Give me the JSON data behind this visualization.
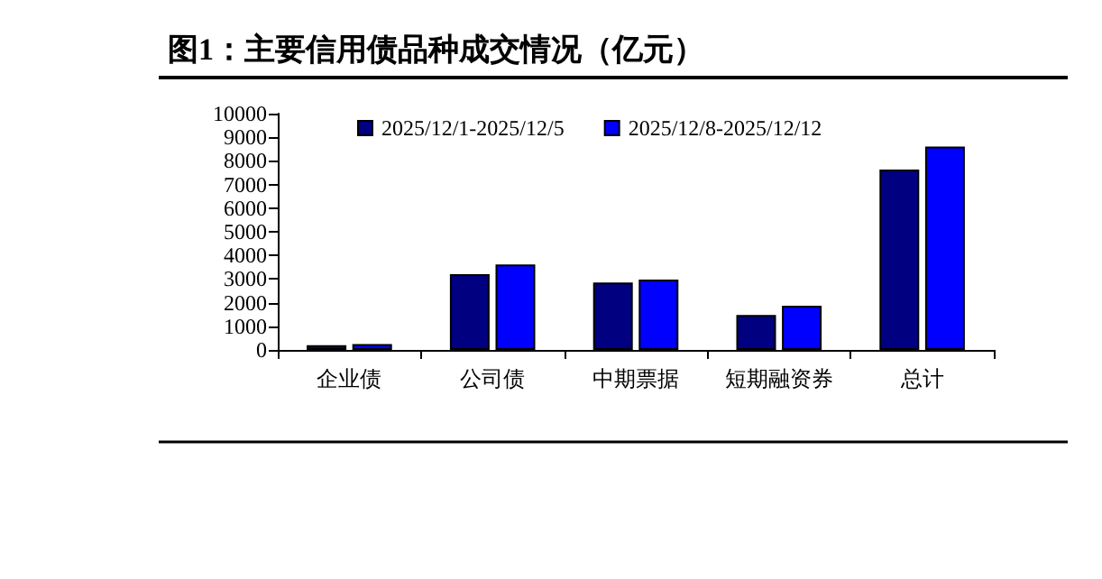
{
  "chart_data": {
    "type": "bar",
    "title": "图1：主要信用债品种成交情况（亿元）",
    "categories": [
      "企业债",
      "公司债",
      "中期票据",
      "短期融资券",
      "总计"
    ],
    "series": [
      {
        "name": "2025/12/1-2025/12/5",
        "color": "#000080",
        "values": [
          200,
          3210,
          2850,
          1480,
          7630
        ]
      },
      {
        "name": "2025/12/8-2025/12/12",
        "color": "#0000ff",
        "values": [
          250,
          3620,
          2980,
          1870,
          8610
        ]
      }
    ],
    "ylim": [
      0,
      10000
    ],
    "yticks": [
      0,
      1000,
      2000,
      3000,
      4000,
      5000,
      6000,
      7000,
      8000,
      9000,
      10000
    ],
    "grid": false,
    "legend": "top"
  }
}
